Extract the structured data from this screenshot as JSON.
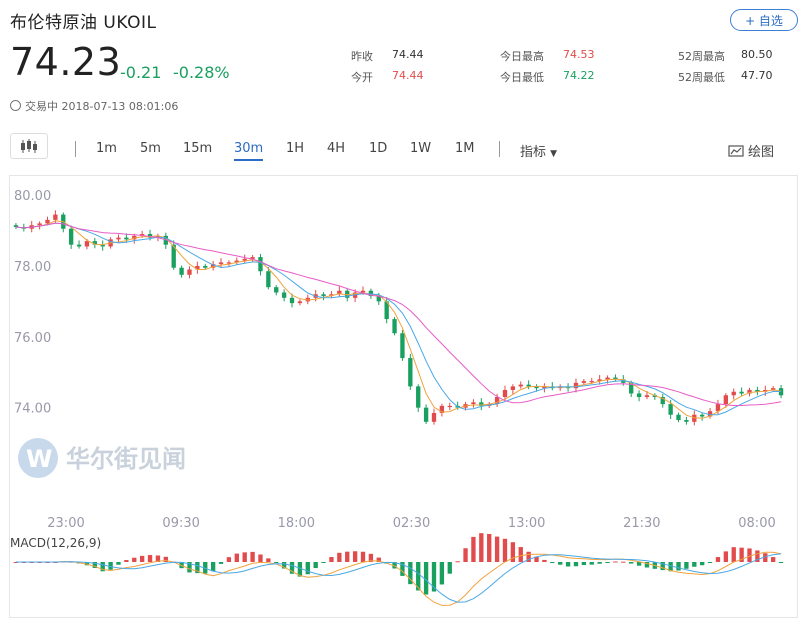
{
  "header": {
    "title": "布伦特原油  UKOIL",
    "fav_label": "+ 自选",
    "price": "74.23",
    "change": "-0.21",
    "change_pct": "-0.28%",
    "status": "交易中 2018-07-13 08:01:06"
  },
  "stats": [
    {
      "label": "昨收",
      "value": "74.44",
      "color": "dark"
    },
    {
      "label": "今开",
      "value": "74.44",
      "color": "red"
    },
    {
      "label": "今日最高",
      "value": "74.53",
      "color": "red"
    },
    {
      "label": "今日最低",
      "value": "74.22",
      "color": "green"
    },
    {
      "label": "52周最高",
      "value": "80.50",
      "color": "dark"
    },
    {
      "label": "52周最低",
      "value": "47.70",
      "color": "dark"
    }
  ],
  "toolbar": {
    "periods": [
      "1m",
      "5m",
      "15m",
      "30m",
      "1H",
      "4H",
      "1D",
      "1W",
      "1M"
    ],
    "active_period": "30m",
    "indicator_label": "指标",
    "draw_label": "绘图"
  },
  "chart_data": {
    "type": "candlestick",
    "y_ticks": [
      "80.00",
      "78.00",
      "76.00",
      "74.00"
    ],
    "x_ticks": [
      "23:00",
      "09:30",
      "18:00",
      "02:30",
      "13:00",
      "21:30",
      "08:00"
    ],
    "ylim": [
      73.2,
      80.2
    ],
    "macd_label": "MACD(12,26,9)",
    "watermark": "华尔街见闻",
    "colors": {
      "up": "#e24b4b",
      "down": "#19a05f",
      "ma_fast": "#f0a23c",
      "ma_mid": "#4aa8e6",
      "ma_slow": "#e85cc8"
    },
    "closes": [
      79.1,
      79.05,
      79.15,
      79.2,
      79.3,
      79.45,
      79.05,
      78.6,
      78.55,
      78.7,
      78.6,
      78.55,
      78.75,
      78.8,
      78.75,
      78.85,
      78.9,
      78.8,
      78.85,
      78.6,
      77.95,
      77.75,
      77.9,
      78.0,
      77.95,
      78.05,
      78.1,
      78.1,
      78.15,
      78.2,
      78.25,
      77.85,
      77.4,
      77.25,
      77.1,
      76.95,
      77.0,
      77.1,
      77.2,
      77.15,
      77.2,
      77.3,
      77.1,
      77.25,
      77.3,
      77.15,
      77.0,
      76.5,
      76.1,
      75.4,
      74.6,
      74.0,
      73.6,
      73.85,
      74.05,
      74.05,
      74.0,
      74.1,
      74.15,
      74.05,
      74.1,
      74.3,
      74.5,
      74.6,
      74.65,
      74.6,
      74.55,
      74.6,
      74.55,
      74.6,
      74.55,
      74.7,
      74.75,
      74.75,
      74.8,
      74.85,
      74.8,
      74.7,
      74.4,
      74.3,
      74.35,
      74.3,
      74.1,
      73.8,
      73.65,
      73.6,
      73.8,
      73.75,
      73.9,
      74.1,
      74.35,
      74.45,
      74.4,
      74.5,
      74.45,
      74.5,
      74.55,
      74.35
    ]
  }
}
